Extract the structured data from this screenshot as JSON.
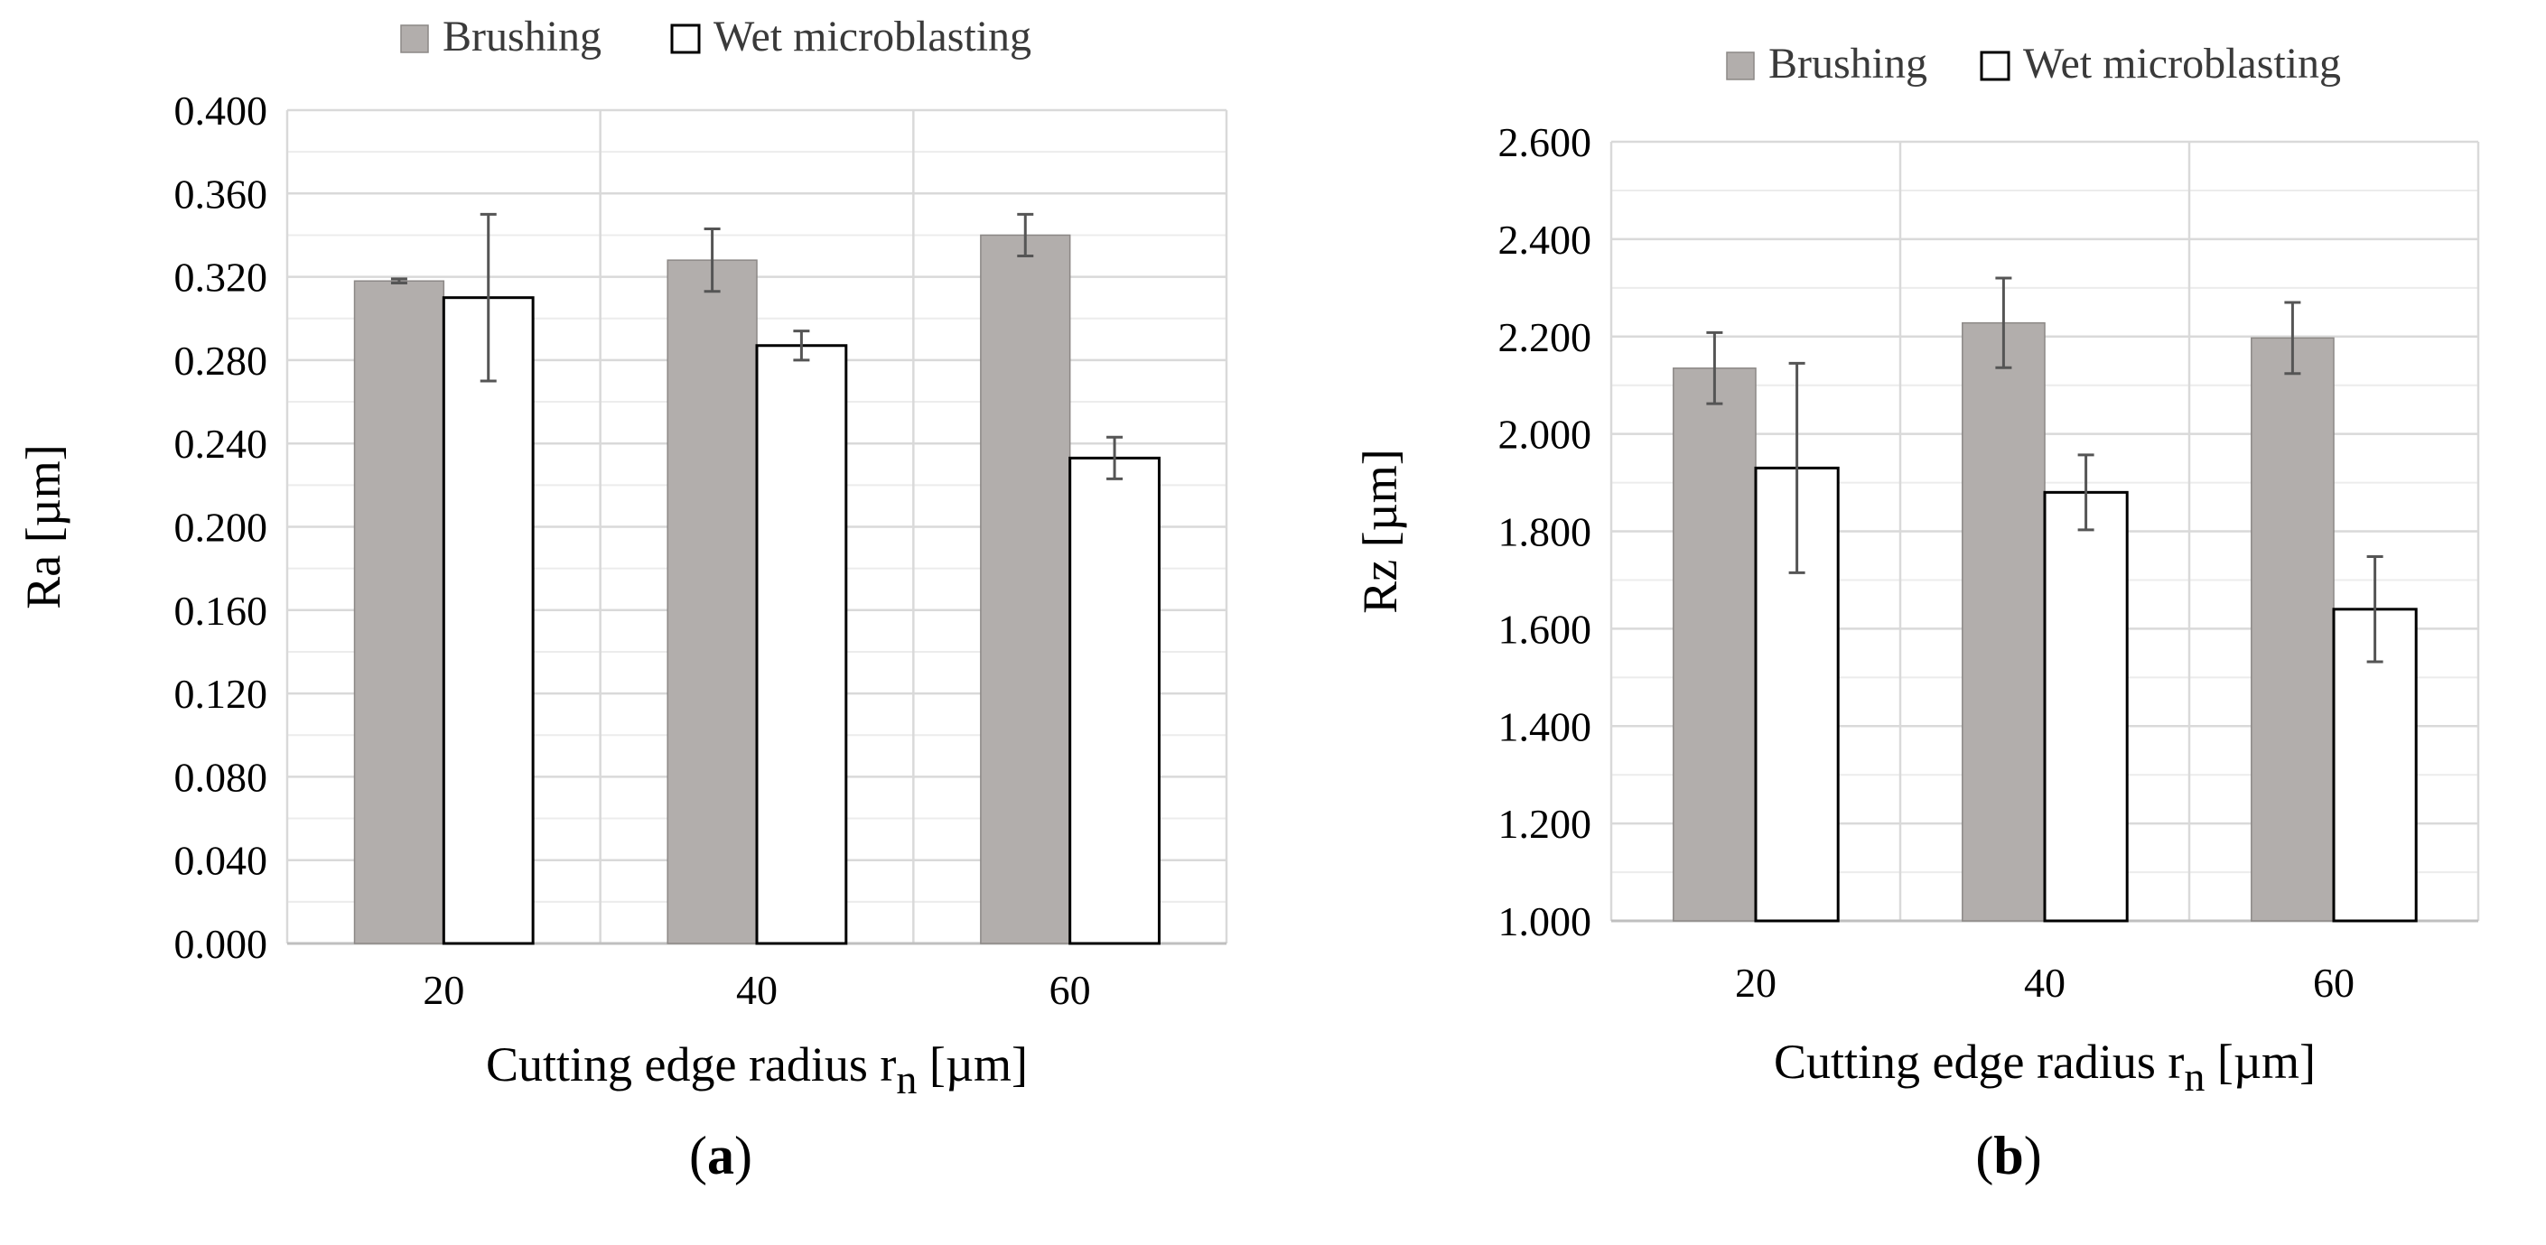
{
  "colors": {
    "brushing": "#b2aeac",
    "brushing_edge": "#8c8886",
    "wet": "#ffffff",
    "wet_edge": "#000000",
    "grid_major": "#d9d9d9",
    "grid_minor": "#ececec",
    "error_bar": "#555555"
  },
  "chart_data": [
    {
      "type": "bar",
      "panel_label": "a",
      "categories": [
        "20",
        "40",
        "60"
      ],
      "xlabel": "Cutting edge radius r",
      "xlabel_subscript": "n",
      "xlabel_unit": " [µm]",
      "ylabel": "Ra [µm]",
      "ylim": [
        0.0,
        0.4
      ],
      "yticks": [
        "0.000",
        "0.040",
        "0.080",
        "0.120",
        "0.160",
        "0.200",
        "0.240",
        "0.280",
        "0.320",
        "0.360",
        "0.400"
      ],
      "grid": true,
      "legend_position": "top-center",
      "series": [
        {
          "name": "Brushing",
          "values": [
            0.318,
            0.328,
            0.34
          ],
          "errors": [
            0.001,
            0.015,
            0.01
          ]
        },
        {
          "name": "Wet microblasting",
          "values": [
            0.31,
            0.287,
            0.233
          ],
          "errors": [
            0.04,
            0.007,
            0.01
          ]
        }
      ]
    },
    {
      "type": "bar",
      "panel_label": "b",
      "categories": [
        "20",
        "40",
        "60"
      ],
      "xlabel": "Cutting edge radius r",
      "xlabel_subscript": "n",
      "xlabel_unit": " [µm]",
      "ylabel": "Rz [µm]",
      "ylim": [
        1.0,
        2.6
      ],
      "yticks": [
        "1.000",
        "1.200",
        "1.400",
        "1.600",
        "1.800",
        "2.000",
        "2.200",
        "2.400",
        "2.600"
      ],
      "grid": true,
      "legend_position": "top-center",
      "series": [
        {
          "name": "Brushing",
          "values": [
            2.135,
            2.228,
            2.197
          ],
          "errors": [
            0.073,
            0.092,
            0.073
          ]
        },
        {
          "name": "Wet microblasting",
          "values": [
            1.93,
            1.88,
            1.64
          ],
          "errors": [
            0.215,
            0.077,
            0.108
          ]
        }
      ]
    }
  ]
}
